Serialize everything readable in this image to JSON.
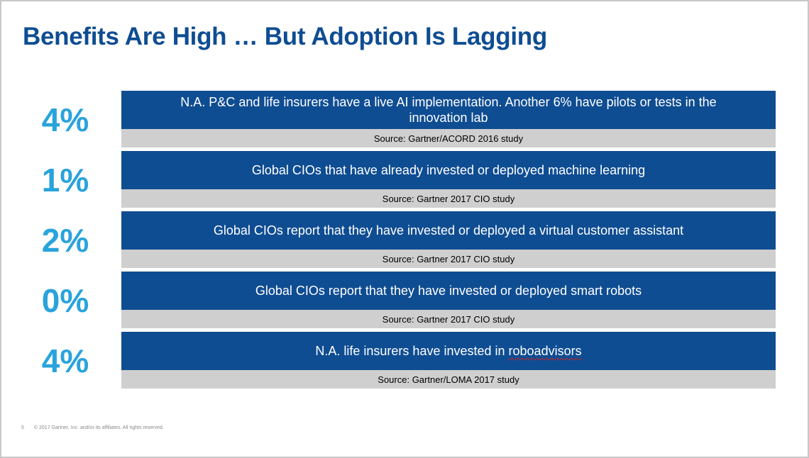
{
  "slide": {
    "title": "Benefits Are High … But Adoption Is Lagging",
    "stats": [
      {
        "percent": "4%",
        "description": "N.A. P&C and life insurers have a live AI implementation. Another 6% have pilots or tests in the innovation lab",
        "source": "Source: Gartner/ACORD 2016 study"
      },
      {
        "percent": "1%",
        "description": "Global CIOs that have already invested or deployed machine learning",
        "source": "Source: Gartner 2017 CIO study"
      },
      {
        "percent": "2%",
        "description": "Global CIOs report that they have invested or deployed a virtual customer assistant",
        "source": "Source: Gartner 2017 CIO study"
      },
      {
        "percent": "0%",
        "description": "Global CIOs report that they have invested or deployed smart robots",
        "source": "Source: Gartner 2017 CIO study"
      },
      {
        "percent": "4%",
        "description_prefix": "N.A. life insurers have invested in ",
        "description_flagged_word": "roboadvisors",
        "source": "Source: Gartner/LOMA 2017 study"
      }
    ],
    "footer": {
      "page_number": "5",
      "copyright": "© 2017 Gartner, Inc. and/or its affiliates. All rights reserved."
    }
  },
  "colors": {
    "title": "#0f4d92",
    "percent": "#29a3dc",
    "description_bg": "#0f4d92",
    "source_bg": "#cfcfcf"
  }
}
